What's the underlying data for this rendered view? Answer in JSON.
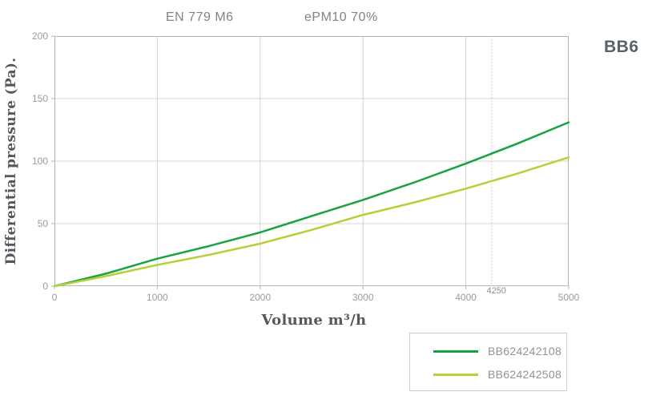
{
  "header": {
    "title_left": "EN 779 M6",
    "title_right": "ePM10 70%",
    "corner_label": "BB6"
  },
  "chart_data": {
    "type": "line",
    "title": "EN 779 M6 / ePM10 70%",
    "xlabel": "Volume m³/h",
    "ylabel": "Differential pressure (Pa).",
    "xlim": [
      0,
      5000
    ],
    "ylim": [
      0,
      200
    ],
    "x_ticks": [
      0,
      1000,
      2000,
      3000,
      4000,
      5000
    ],
    "y_ticks": [
      0,
      50,
      100,
      150,
      200
    ],
    "grid": true,
    "legend_position": "bottom-right-outside",
    "reference_line": {
      "x": 4250,
      "label": "4250",
      "style": "dotted"
    },
    "x": [
      0,
      500,
      1000,
      1500,
      2000,
      2500,
      3000,
      3500,
      4000,
      4500,
      5000
    ],
    "series": [
      {
        "name": "BB624242108",
        "color": "#16A341",
        "values": [
          0,
          10,
          22,
          32,
          43,
          56,
          69,
          83,
          98,
          114,
          131
        ]
      },
      {
        "name": "BB624242508",
        "color": "#B6D03A",
        "values": [
          0,
          8,
          17,
          25,
          34,
          45,
          57,
          67,
          78,
          90,
          103
        ]
      }
    ],
    "colors": {
      "grid": "#d4d4d4",
      "plot_border": "#b4b4b4",
      "reference_line": "#c4c4c4",
      "tick_text": "#9b9b9b"
    }
  }
}
